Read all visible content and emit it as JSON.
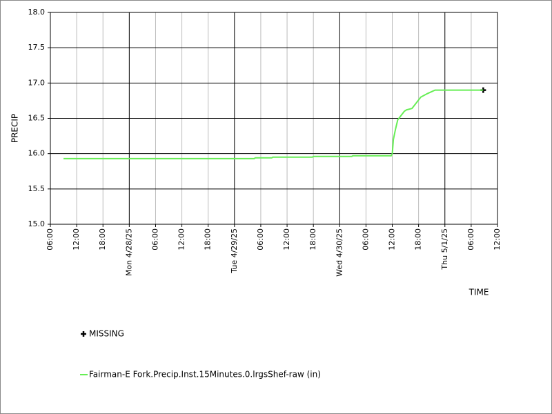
{
  "chart_data": {
    "type": "line",
    "xlabel": "TIME",
    "ylabel": "PRECIP",
    "xlim": [
      "2025-04-27T06:00",
      "2025-05-01T12:00"
    ],
    "xticks": [
      {
        "value": "2025-04-27T06:00",
        "label": "06:00"
      },
      {
        "value": "2025-04-27T12:00",
        "label": "12:00"
      },
      {
        "value": "2025-04-27T18:00",
        "label": "18:00"
      },
      {
        "value": "2025-04-28T00:00",
        "label": "Mon 4/28/25"
      },
      {
        "value": "2025-04-28T06:00",
        "label": "06:00"
      },
      {
        "value": "2025-04-28T12:00",
        "label": "12:00"
      },
      {
        "value": "2025-04-28T18:00",
        "label": "18:00"
      },
      {
        "value": "2025-04-29T00:00",
        "label": "Tue 4/29/25"
      },
      {
        "value": "2025-04-29T06:00",
        "label": "06:00"
      },
      {
        "value": "2025-04-29T12:00",
        "label": "12:00"
      },
      {
        "value": "2025-04-29T18:00",
        "label": "18:00"
      },
      {
        "value": "2025-04-30T00:00",
        "label": "Wed 4/30/25"
      },
      {
        "value": "2025-04-30T06:00",
        "label": "06:00"
      },
      {
        "value": "2025-04-30T12:00",
        "label": "12:00"
      },
      {
        "value": "2025-04-30T18:00",
        "label": "18:00"
      },
      {
        "value": "2025-05-01T00:00",
        "label": "Thu 5/1/25"
      },
      {
        "value": "2025-05-01T06:00",
        "label": "06:00"
      },
      {
        "value": "2025-05-01T12:00",
        "label": "12:00"
      }
    ],
    "ylim": [
      15,
      18
    ],
    "yticks": [
      {
        "value": 15,
        "label": "15.0"
      },
      15.5,
      {
        "value": 16,
        "label": "16.0"
      },
      16.5,
      {
        "value": 17,
        "label": "17.0"
      },
      17.5,
      {
        "value": 18,
        "label": "18.0"
      }
    ],
    "grid": true,
    "series": [
      {
        "name": "MISSING",
        "color": "#000000",
        "marker": "plus",
        "x": [
          "2025-05-01T08:45"
        ],
        "values": [
          16.9
        ]
      },
      {
        "name": "Fairman-E Fork.Precip.Inst.15Minutes.0.lrgsShef-raw (in)",
        "color": "#66ee55",
        "marker": "line",
        "x": [
          "2025-04-27T09:00",
          "2025-04-29T04:30",
          "2025-04-29T04:45",
          "2025-04-29T08:30",
          "2025-04-29T08:45",
          "2025-04-29T17:45",
          "2025-04-29T18:00",
          "2025-04-30T02:45",
          "2025-04-30T03:00",
          "2025-04-30T11:45",
          "2025-04-30T12:00",
          "2025-04-30T12:15",
          "2025-04-30T12:45",
          "2025-04-30T13:15",
          "2025-04-30T13:45",
          "2025-04-30T14:45",
          "2025-04-30T15:15",
          "2025-04-30T16:30",
          "2025-04-30T17:30",
          "2025-04-30T18:30",
          "2025-04-30T20:00",
          "2025-04-30T21:45",
          "2025-05-01T08:45"
        ],
        "values": [
          15.93,
          15.93,
          15.94,
          15.94,
          15.95,
          15.95,
          15.96,
          15.96,
          15.97,
          15.97,
          16.0,
          16.2,
          16.35,
          16.48,
          16.52,
          16.6,
          16.62,
          16.64,
          16.72,
          16.8,
          16.85,
          16.9,
          16.9
        ]
      }
    ]
  }
}
